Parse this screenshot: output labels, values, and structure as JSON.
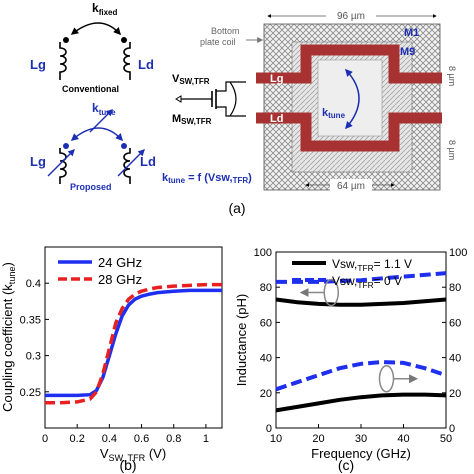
{
  "schematic": {
    "k_fixed": "k",
    "k_fixed_sub": "fixed",
    "lg": "Lg",
    "ld": "Ld",
    "conventional": "Conventional",
    "k_tune": "k",
    "k_tune_sub": "tune",
    "proposed": "Proposed",
    "vsw": "V",
    "vsw_sub": "SW,TFR",
    "msw": "M",
    "msw_sub": "SW,TFR",
    "ktune_eq": "k",
    "ktune_eq_sub": "tune",
    "ktune_eq_rest": " = f (Vsw,",
    "ktune_eq_sub2": "TFR",
    "ktune_eq_end": ")"
  },
  "layout_fig": {
    "dim_top": "96 µm",
    "dim_bottom": "64 µm",
    "dim_right1": "8 µm",
    "dim_right2": "8 µm",
    "bottom_plate": "Bottom",
    "bottom_plate2": "plate coil",
    "m1": "M1",
    "m9": "M9",
    "lg": "Lg",
    "ld": "Ld",
    "ktune": "k",
    "ktune_sub": "tune"
  },
  "captions": {
    "a": "(a)",
    "b": "(b)",
    "c": "(c)"
  },
  "colors": {
    "blue": "#1f2ff0",
    "red": "#e8201f",
    "coil": "#a83232",
    "navy": "#1c2fb3",
    "grid": "#8a8a8a"
  },
  "chart_data": [
    {
      "type": "line",
      "ylabel": "Coupling coefficient (k",
      "ylabel_sub": "tune",
      "ylabel_end": ")",
      "xlabel": "V",
      "xlabel_sub": "SW, TFR",
      "xlabel_end": " (V)",
      "xlim": [
        0,
        1.1
      ],
      "ylim": [
        0.2,
        0.45
      ],
      "xticks": [
        "0",
        "0.2",
        "0.4",
        "0.6",
        "0.8",
        "1"
      ],
      "yticks": [
        "0.25",
        "0.3",
        "0.35",
        "0.4"
      ],
      "legend_placement": "top-left",
      "series": [
        {
          "name": "24 GHz",
          "color": "#1f2ff0",
          "dash": "solid",
          "x": [
            0,
            0.1,
            0.2,
            0.28,
            0.32,
            0.36,
            0.4,
            0.44,
            0.48,
            0.52,
            0.56,
            0.6,
            0.65,
            0.7,
            0.8,
            0.9,
            1.0,
            1.1
          ],
          "y": [
            0.245,
            0.245,
            0.245,
            0.246,
            0.252,
            0.27,
            0.3,
            0.33,
            0.355,
            0.37,
            0.378,
            0.382,
            0.385,
            0.387,
            0.389,
            0.39,
            0.39,
            0.39
          ]
        },
        {
          "name": "28 GHz",
          "color": "#e8201f",
          "dash": "dashed",
          "x": [
            0,
            0.1,
            0.2,
            0.28,
            0.32,
            0.36,
            0.4,
            0.44,
            0.48,
            0.52,
            0.56,
            0.6,
            0.65,
            0.7,
            0.8,
            0.9,
            1.0,
            1.1
          ],
          "y": [
            0.235,
            0.235,
            0.236,
            0.24,
            0.25,
            0.275,
            0.31,
            0.345,
            0.365,
            0.378,
            0.385,
            0.389,
            0.392,
            0.394,
            0.396,
            0.397,
            0.398,
            0.398
          ]
        }
      ]
    },
    {
      "type": "line",
      "ylabel": "Inductance (pH)",
      "xlabel": "Frequency (GHz)",
      "xlim": [
        10,
        50
      ],
      "ylim": [
        0,
        100
      ],
      "xticks": [
        "10",
        "20",
        "30",
        "40",
        "50"
      ],
      "yticks": [
        "0",
        "20",
        "40",
        "60",
        "80",
        "100"
      ],
      "right_yticks": [
        "0",
        "20",
        "40",
        "60",
        "80",
        "100"
      ],
      "legend_placement": "top",
      "series": [
        {
          "name_main": "Vsw,",
          "name_sub": "TFR",
          "name_end": "= 1.1 V",
          "color": "#000000",
          "dash": "solid",
          "x": [
            10,
            15,
            20,
            25,
            30,
            35,
            40,
            45,
            50
          ],
          "y": [
            73,
            71.5,
            70.5,
            70,
            70,
            70.5,
            71,
            72,
            73
          ]
        },
        {
          "name_main": "Vsw,",
          "name_sub": "TFR",
          "name_end": "= 0 V",
          "color": "#1f2ff0",
          "dash": "dashed",
          "x": [
            10,
            15,
            20,
            25,
            30,
            35,
            40,
            45,
            50
          ],
          "y": [
            83,
            83,
            83,
            83.5,
            84,
            85,
            86,
            87,
            88
          ]
        },
        {
          "name": "",
          "color": "#000000",
          "dash": "solid",
          "x": [
            10,
            15,
            20,
            25,
            30,
            35,
            40,
            45,
            50
          ],
          "y": [
            10,
            12,
            14,
            16,
            17.5,
            18.5,
            19,
            19,
            18.5
          ]
        },
        {
          "name": "",
          "color": "#1f2ff0",
          "dash": "dashed",
          "x": [
            10,
            15,
            20,
            25,
            30,
            35,
            40,
            45,
            50
          ],
          "y": [
            22,
            26,
            30,
            34,
            36.5,
            37.5,
            37,
            34,
            30
          ]
        }
      ]
    }
  ]
}
